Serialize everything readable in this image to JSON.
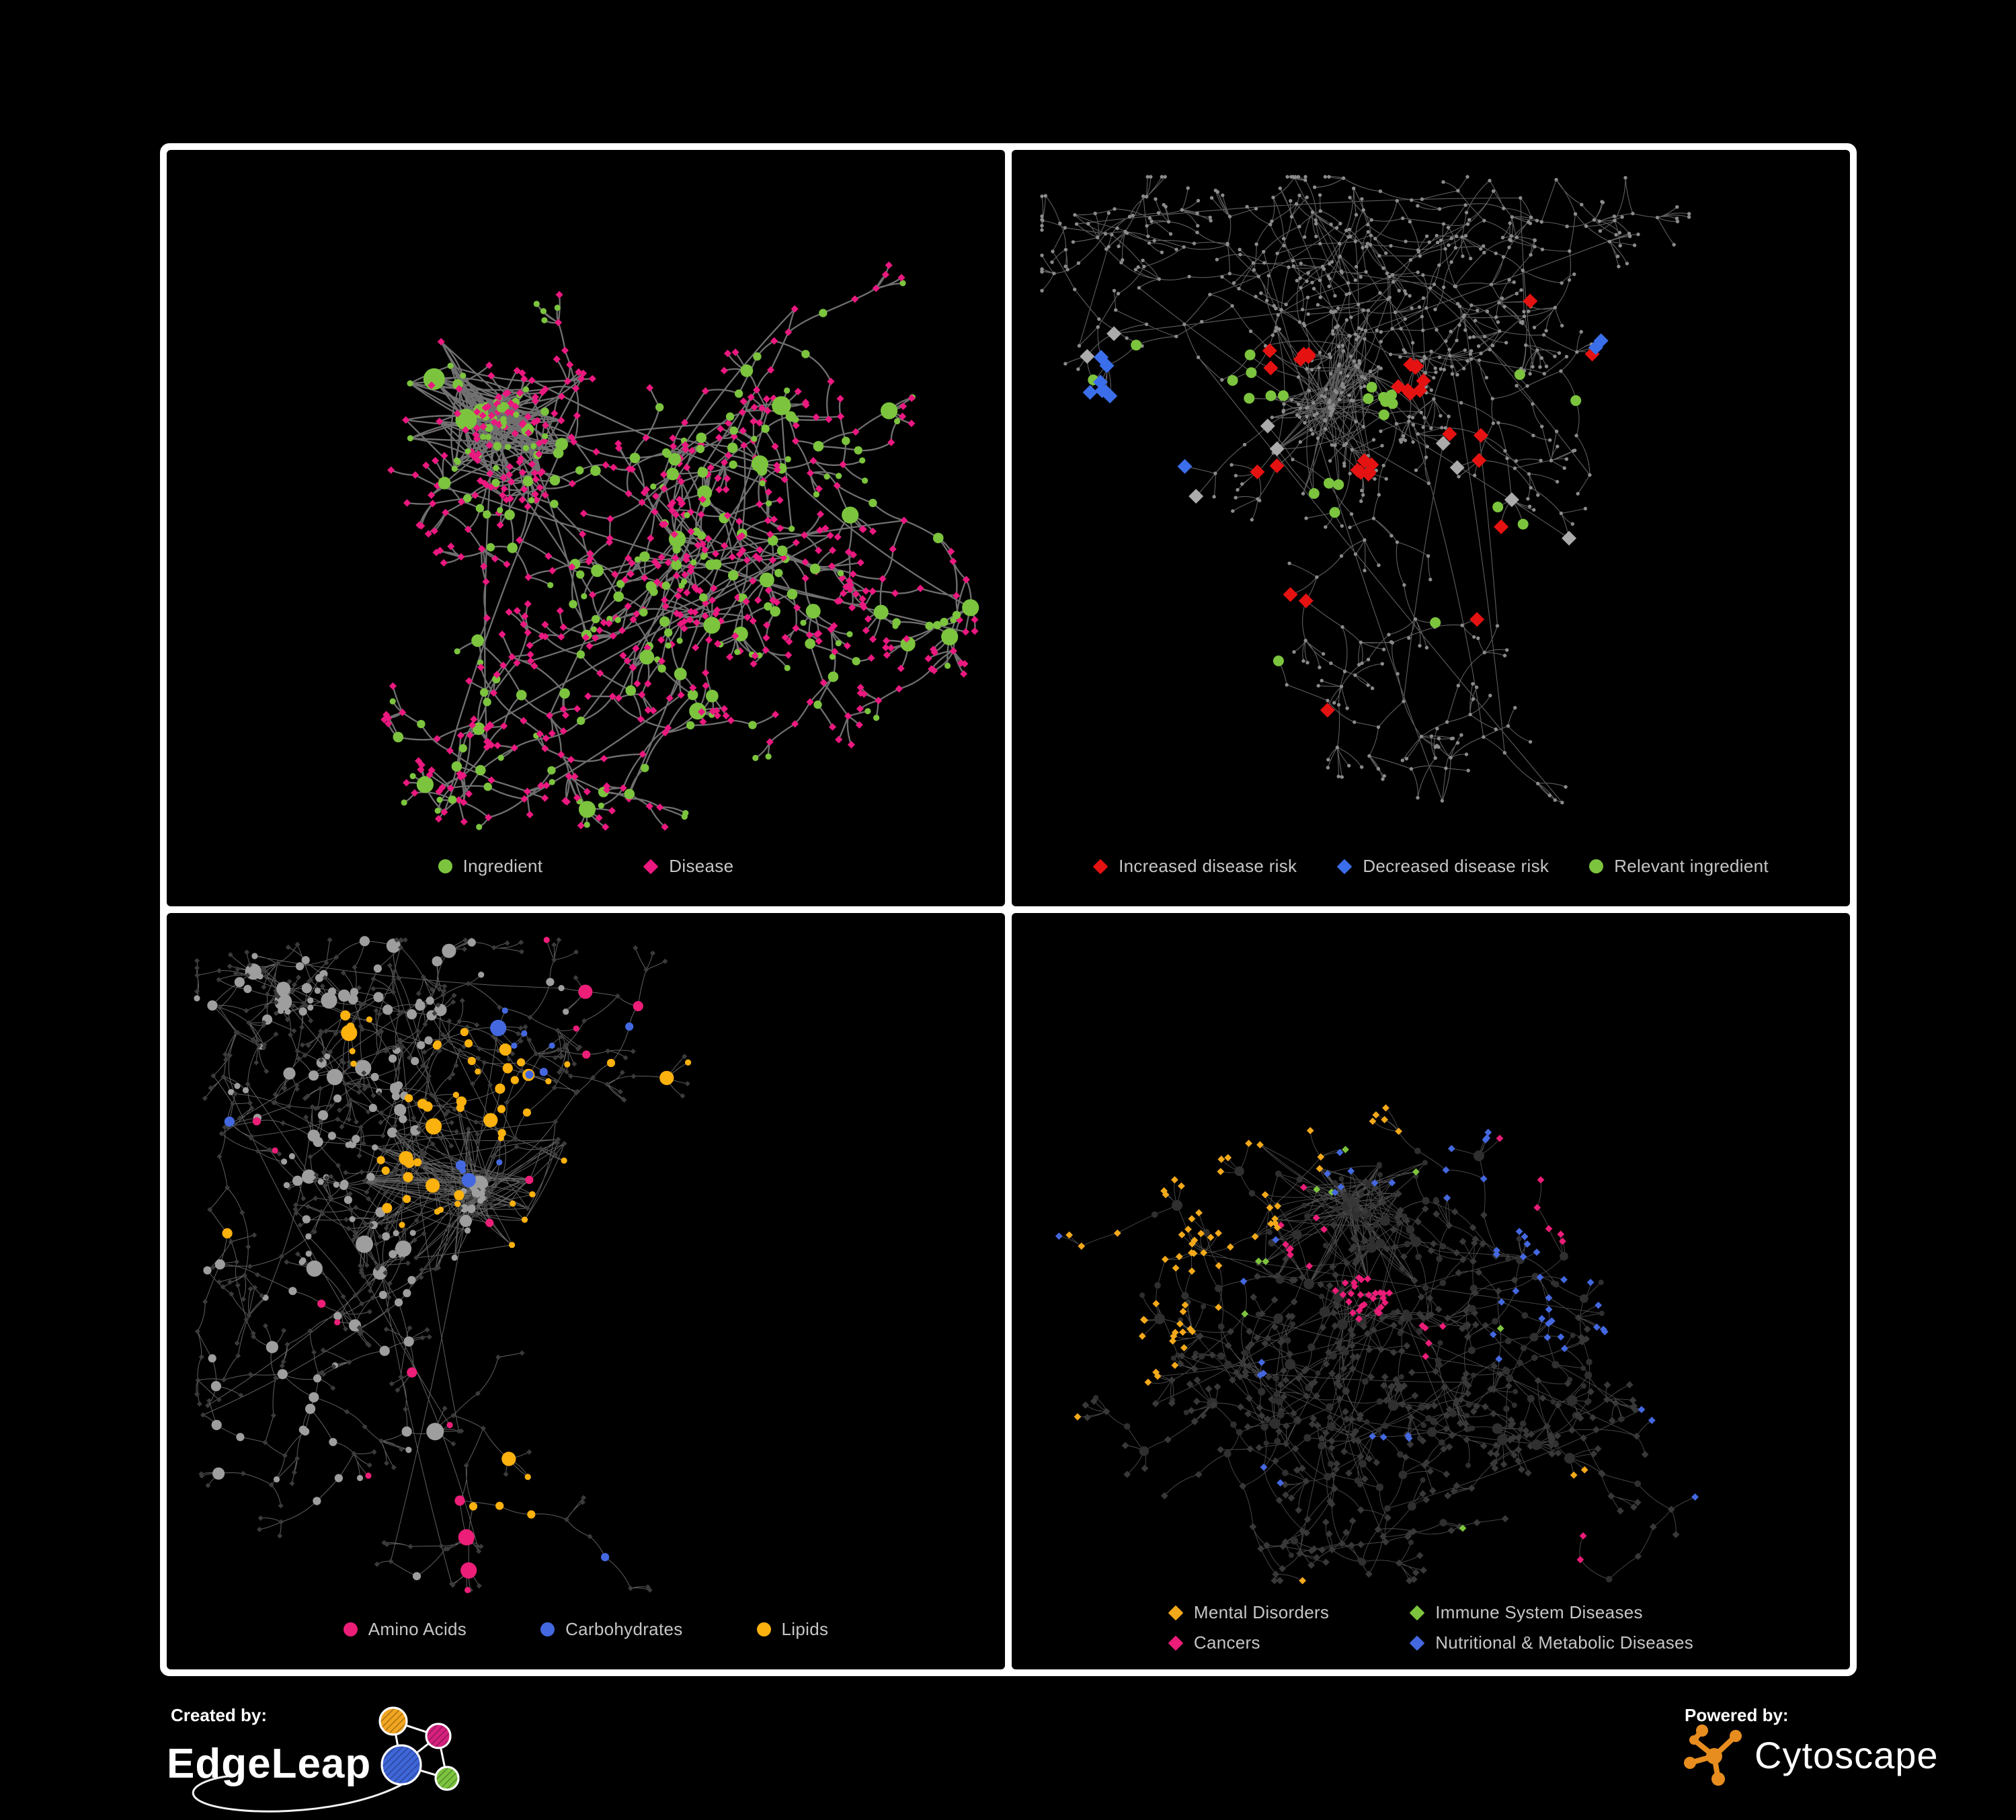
{
  "page": {
    "background": "#000000",
    "frame_color": "#ffffff",
    "legend_text_color": "#C6C6C6"
  },
  "branding": {
    "created_by_label": "Created by:",
    "created_by_brand": "EdgeLeap",
    "powered_by_label": "Powered by:",
    "powered_by_brand": "Cytoscape",
    "edgeleap_node_colors": {
      "orange": "#F2A51F",
      "magenta": "#D6217E",
      "blue": "#3E66D9",
      "green": "#7CC43F"
    },
    "cytoscape_orange": "#E78D1F"
  },
  "panels": [
    {
      "id": "ingredient-disease",
      "legend": {
        "columns": 1,
        "items": [
          {
            "shape": "circle",
            "color": "#7CC43E",
            "label": "Ingredient"
          },
          {
            "shape": "diamond",
            "color": "#EA187F",
            "label": "Disease"
          }
        ]
      },
      "net": {
        "seed": 11,
        "core": [
          0.4,
          0.36
        ],
        "coreRadius": 0.14,
        "coreCount": 74,
        "coreDensity": 1.25,
        "branchCount": 30,
        "branchLen": 9,
        "step": 46,
        "forkProb": 0.42,
        "maxDepth": 14,
        "leafFan": 5,
        "diamondProb": 0.62,
        "leafDiamondProb": 0.84,
        "starCount": 7,
        "starMin": 9,
        "starMax": 26,
        "crossEdges": 26,
        "margin": 45,
        "topMargin": 40,
        "bottomMargin": 118,
        "edge": {
          "color": "#7C7C7C",
          "width": 2.3,
          "opacity": 0.9
        },
        "paint": {
          "mode": "dual",
          "circle": {
            "color": "#7CC43E",
            "rBase": 4.6,
            "rChild": 1.6,
            "rMax": 16
          },
          "diamond": {
            "color": "#EA187F",
            "s": 5.6
          }
        },
        "highlights": []
      }
    },
    {
      "id": "disease-risk",
      "legend": {
        "columns": 1,
        "items": [
          {
            "shape": "diamond",
            "color": "#E51212",
            "label": "Increased disease risk"
          },
          {
            "shape": "diamond",
            "color": "#3B6EEA",
            "label": "Decreased disease risk"
          },
          {
            "shape": "circle",
            "color": "#7CC43E",
            "label": "Relevant ingredient"
          }
        ]
      },
      "net": {
        "seed": 23,
        "core": [
          0.38,
          0.34
        ],
        "coreRadius": 0.13,
        "coreCount": 66,
        "coreDensity": 1.1,
        "branchCount": 36,
        "branchLen": 10,
        "step": 50,
        "forkProb": 0.45,
        "maxDepth": 15,
        "leafFan": 6,
        "diamondProb": 0.6,
        "leafDiamondProb": 0.8,
        "starCount": 8,
        "starMin": 10,
        "starMax": 30,
        "crossEdges": 22,
        "margin": 45,
        "topMargin": 40,
        "bottomMargin": 118,
        "edge": {
          "color": "#6F6F6F",
          "width": 1.1,
          "opacity": 0.85
        },
        "paint": {
          "mode": "mono",
          "dot": {
            "color": "#8B8B8B",
            "r": 2.7
          }
        },
        "highlights": [
          {
            "shape": "diamond",
            "color": "#E51212",
            "s": 11,
            "anchors": [
              [
                0.33,
                0.27,
                6
              ],
              [
                0.47,
                0.3,
                8
              ],
              [
                0.42,
                0.42,
                6
              ],
              [
                0.55,
                0.38,
                3
              ],
              [
                0.3,
                0.42,
                2
              ],
              [
                0.7,
                0.28,
                1
              ],
              [
                0.36,
                0.6,
                2
              ],
              [
                0.57,
                0.56,
                2
              ],
              [
                0.38,
                0.74,
                1
              ],
              [
                0.63,
                0.18,
                1
              ]
            ]
          },
          {
            "shape": "diamond",
            "color": "#3B6EEA",
            "s": 11,
            "anchors": [
              [
                0.135,
                0.3,
                6
              ],
              [
                0.175,
                0.36,
                2
              ],
              [
                0.82,
                0.34,
                2
              ]
            ]
          },
          {
            "shape": "diamond",
            "color": "#ABABAB",
            "s": 11,
            "anchors": [
              [
                0.11,
                0.26,
                2
              ],
              [
                0.3,
                0.38,
                2
              ],
              [
                0.52,
                0.4,
                2
              ],
              [
                0.6,
                0.47,
                1
              ],
              [
                0.19,
                0.55,
                1
              ],
              [
                0.67,
                0.58,
                1
              ]
            ]
          },
          {
            "shape": "circle",
            "color": "#7CC43E",
            "r": 8,
            "anchors": [
              [
                0.3,
                0.3,
                6
              ],
              [
                0.45,
                0.33,
                7
              ],
              [
                0.38,
                0.45,
                4
              ],
              [
                0.13,
                0.3,
                2
              ],
              [
                0.55,
                0.5,
                2
              ],
              [
                0.25,
                0.68,
                1
              ],
              [
                0.5,
                0.62,
                1
              ],
              [
                0.79,
                0.35,
                1
              ],
              [
                0.6,
                0.3,
                1
              ]
            ]
          }
        ]
      }
    },
    {
      "id": "ingredient-classes",
      "legend": {
        "columns": 1,
        "items": [
          {
            "shape": "circle",
            "color": "#EC1E78",
            "label": "Amino Acids"
          },
          {
            "shape": "circle",
            "color": "#4468E0",
            "label": "Carbohydrates"
          },
          {
            "shape": "circle",
            "color": "#FBB10E",
            "label": "Lipids"
          }
        ]
      },
      "net": {
        "seed": 37,
        "core": [
          0.37,
          0.37
        ],
        "coreRadius": 0.15,
        "coreCount": 78,
        "coreDensity": 1.3,
        "branchCount": 30,
        "branchLen": 9,
        "step": 46,
        "forkProb": 0.42,
        "maxDepth": 14,
        "leafFan": 5,
        "diamondProb": 0.6,
        "leafDiamondProb": 0.82,
        "starCount": 7,
        "starMin": 9,
        "starMax": 26,
        "crossEdges": 26,
        "margin": 45,
        "topMargin": 40,
        "bottomMargin": 118,
        "edge": {
          "color": "#9B9B9B",
          "width": 1.0,
          "opacity": 0.62
        },
        "paint": {
          "mode": "dual",
          "circle": {
            "color": "#9E9E9E",
            "rBase": 4.6,
            "rChild": 1.5,
            "rMax": 13
          },
          "diamond": {
            "color": "#3B3B3B",
            "s": 4.0
          }
        },
        "highlights": [
          {
            "shape": "circle",
            "color": "#FBB10E",
            "r": 0,
            "anchors": [
              [
                0.36,
                0.24,
                24
              ],
              [
                0.3,
                0.36,
                14
              ],
              [
                0.23,
                0.16,
                6
              ],
              [
                0.56,
                0.57,
                6
              ],
              [
                0.47,
                0.72,
                3
              ],
              [
                0.52,
                0.3,
                4
              ],
              [
                0.75,
                0.15,
                2
              ],
              [
                0.12,
                0.42,
                1
              ]
            ]
          },
          {
            "shape": "circle",
            "color": "#4468E0",
            "r": 0,
            "anchors": [
              [
                0.4,
                0.22,
                8
              ],
              [
                0.36,
                0.3,
                3
              ],
              [
                0.03,
                0.26,
                1
              ],
              [
                0.77,
                0.62,
                1
              ],
              [
                0.66,
                0.2,
                1
              ]
            ]
          },
          {
            "shape": "circle",
            "color": "#EC1E78",
            "r": 0,
            "anchors": [
              [
                0.68,
                0.12,
                1
              ],
              [
                0.12,
                0.3,
                2
              ],
              [
                0.17,
                0.56,
                2
              ],
              [
                0.33,
                0.62,
                2
              ],
              [
                0.5,
                0.52,
                2
              ],
              [
                0.6,
                0.68,
                3
              ],
              [
                0.44,
                0.86,
                2
              ],
              [
                0.74,
                0.33,
                2
              ],
              [
                0.9,
                0.3,
                1
              ],
              [
                0.57,
                0.03,
                1
              ],
              [
                0.27,
                0.78,
                1
              ]
            ]
          }
        ]
      }
    },
    {
      "id": "disease-classes",
      "legend": {
        "columns": 2,
        "items": [
          {
            "shape": "diamond",
            "color": "#F3A91B",
            "label": "Mental Disorders"
          },
          {
            "shape": "diamond",
            "color": "#EB1D78",
            "label": "Cancers"
          },
          {
            "shape": "diamond",
            "color": "#7CC43E",
            "label": "Immune System Diseases"
          },
          {
            "shape": "diamond",
            "color": "#4468E0",
            "label": "Nutritional & Metabolic Diseases"
          }
        ]
      },
      "net": {
        "seed": 51,
        "core": [
          0.4,
          0.38
        ],
        "coreRadius": 0.14,
        "coreCount": 76,
        "coreDensity": 1.2,
        "branchCount": 34,
        "branchLen": 9,
        "step": 47,
        "forkProb": 0.44,
        "maxDepth": 14,
        "leafFan": 6,
        "diamondProb": 0.68,
        "leafDiamondProb": 0.86,
        "starCount": 8,
        "starMin": 9,
        "starMax": 26,
        "crossEdges": 24,
        "margin": 45,
        "topMargin": 40,
        "bottomMargin": 132,
        "edge": {
          "color": "#8A8A8A",
          "width": 0.9,
          "opacity": 0.55
        },
        "paint": {
          "mode": "dual",
          "circle": {
            "color": "#2F2F2F",
            "rBase": 4.0,
            "rChild": 0.8,
            "rMax": 8
          },
          "diamond": {
            "color": "#383838",
            "s": 5.4
          }
        },
        "highlights": [
          {
            "shape": "diamond",
            "color": "#F3A91B",
            "s": 0,
            "anchors": [
              [
                0.165,
                0.45,
                38
              ],
              [
                0.23,
                0.38,
                12
              ],
              [
                0.12,
                0.55,
                6
              ],
              [
                0.3,
                0.1,
                3
              ],
              [
                0.15,
                0.07,
                2
              ],
              [
                0.47,
                0.25,
                2
              ],
              [
                0.67,
                0.77,
                2
              ],
              [
                0.35,
                0.88,
                1
              ],
              [
                0.08,
                0.7,
                1
              ],
              [
                0.44,
                0.04,
                2
              ]
            ]
          },
          {
            "shape": "diamond",
            "color": "#EB1D78",
            "s": 0,
            "anchors": [
              [
                0.42,
                0.5,
                28
              ],
              [
                0.35,
                0.43,
                8
              ],
              [
                0.5,
                0.57,
                5
              ],
              [
                0.86,
                0.21,
                5
              ],
              [
                0.93,
                0.12,
                1
              ],
              [
                0.66,
                0.85,
                2
              ],
              [
                0.25,
                0.3,
                1
              ]
            ]
          },
          {
            "shape": "diamond",
            "color": "#7CC43E",
            "s": 0,
            "anchors": [
              [
                0.36,
                0.38,
                2
              ],
              [
                0.3,
                0.45,
                2
              ],
              [
                0.48,
                0.3,
                1
              ],
              [
                0.6,
                0.55,
                1
              ],
              [
                0.42,
                0.15,
                1
              ],
              [
                0.55,
                0.85,
                1
              ],
              [
                0.25,
                0.52,
                1
              ]
            ]
          },
          {
            "shape": "diamond",
            "color": "#4468E0",
            "s": 0,
            "anchors": [
              [
                0.62,
                0.55,
                12
              ],
              [
                0.73,
                0.28,
                6
              ],
              [
                0.8,
                0.34,
                6
              ],
              [
                0.65,
                0.4,
                4
              ],
              [
                0.45,
                0.68,
                4
              ],
              [
                0.3,
                0.6,
                3
              ],
              [
                0.55,
                0.3,
                3
              ],
              [
                0.4,
                0.08,
                3
              ],
              [
                0.16,
                0.12,
                4
              ],
              [
                0.52,
                0.05,
                2
              ],
              [
                0.88,
                0.48,
                2
              ],
              [
                0.3,
                0.75,
                2
              ],
              [
                0.1,
                0.3,
                1
              ],
              [
                0.93,
                0.7,
                1
              ],
              [
                0.86,
                0.6,
                2
              ]
            ]
          }
        ]
      }
    }
  ]
}
